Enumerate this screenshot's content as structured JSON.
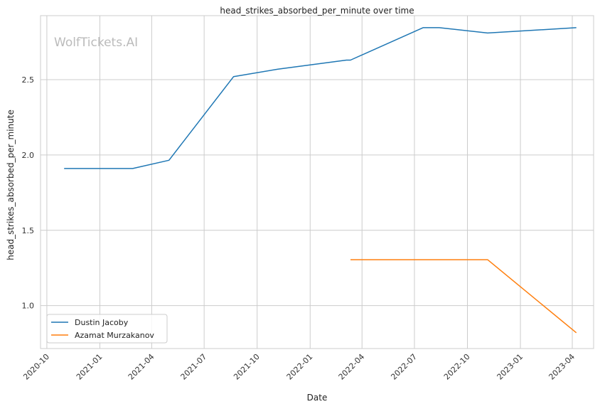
{
  "chart_data": {
    "type": "line",
    "title": "head_strikes_absorbed_per_minute over time",
    "xlabel": "Date",
    "ylabel": "head_strikes_absorbed_per_minute",
    "watermark": "WolfTickets.AI",
    "xlim": [
      "2020-09-20",
      "2023-05-08"
    ],
    "ylim": [
      0.715,
      2.925
    ],
    "x_ticks": [
      "2020-10",
      "2021-01",
      "2021-04",
      "2021-07",
      "2021-10",
      "2022-01",
      "2022-04",
      "2022-07",
      "2022-10",
      "2023-01",
      "2023-04"
    ],
    "y_ticks": [
      "1.0",
      "1.5",
      "2.0",
      "2.5"
    ],
    "grid": true,
    "legend_position": "lower-left",
    "series": [
      {
        "name": "Dustin Jacoby",
        "color": "#1f77b4",
        "points": [
          [
            "2020-10-31",
            1.91
          ],
          [
            "2021-02-27",
            1.91
          ],
          [
            "2021-05-01",
            1.965
          ],
          [
            "2021-08-21",
            2.52
          ],
          [
            "2021-11-06",
            2.57
          ],
          [
            "2022-03-05",
            2.63
          ],
          [
            "2022-03-12",
            2.63
          ],
          [
            "2022-07-16",
            2.845
          ],
          [
            "2022-08-13",
            2.845
          ],
          [
            "2022-11-05",
            2.81
          ],
          [
            "2023-04-08",
            2.845
          ]
        ]
      },
      {
        "name": "Azamat Murzakanov",
        "color": "#ff7f0e",
        "points": [
          [
            "2022-03-12",
            1.305
          ],
          [
            "2022-11-05",
            1.305
          ],
          [
            "2023-04-08",
            0.82
          ]
        ]
      }
    ]
  }
}
